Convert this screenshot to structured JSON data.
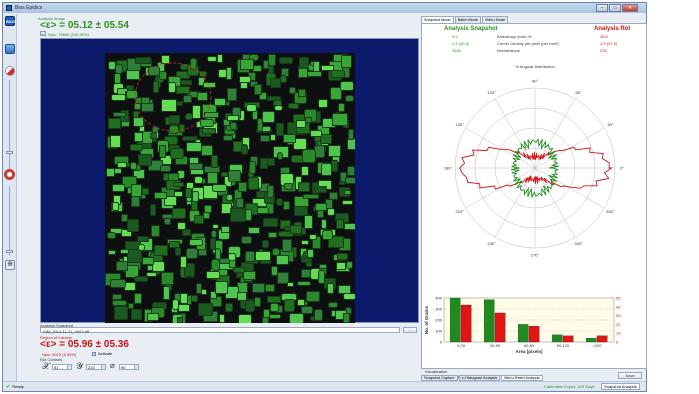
{
  "window": {
    "title": "Bios Epidicx",
    "btn_min": "–",
    "btn_max": "□",
    "btn_close": "✕"
  },
  "colors": {
    "green": "#2e8f1f",
    "red": "#cc1111",
    "bg_blue": "#0b1a6b"
  },
  "main": {
    "analysis_image_label": "Analysis Image",
    "mean_text": "<ε> =  05.12  ±  05.54",
    "npix_text": "Npix: 76800 (100.00%)",
    "snapshot_label": "Analysis Snapshot",
    "snapshot_file": "SIM_2014-11-21_0003.tiff",
    "roi_label": "Region of Interest",
    "roi_mean_text": "<ε> =  05.96  ±  05.36",
    "roi_npix_text": "Npix:  5023 (6.54%)",
    "activate_label": "Activate",
    "roi_controls_label": "RoI Controls",
    "roi_x": "51",
    "roi_y": "223",
    "roi_angle": "90"
  },
  "right": {
    "tabs": [
      "Snapshot Mode",
      "Batch Mode",
      "Video Mode"
    ],
    "snapshot_title": "Analysis Snapshot",
    "roi_title": "Analysis RoI",
    "rows": [
      {
        "left": "9.9",
        "label": "Anisotropy Index %",
        "right": "38.8"
      },
      {
        "left": "2.4 (40.5)",
        "label": "Corner Density per pixel (per mm²)",
        "right": "1.9 (37.6)"
      },
      {
        "left": "1550",
        "label": "Intersections",
        "right": "215"
      }
    ],
    "polar_title": "% Angular Distribution",
    "angle_labels": [
      "90°",
      "60°",
      "30°",
      "0°",
      "330°",
      "300°",
      "270°",
      "240°",
      "210°",
      "180°",
      "150°",
      "120°"
    ],
    "visualisation_label": "Visualisation",
    "vis_options": [
      "Cell Areas",
      "Pointillicity",
      "Thinned"
    ],
    "save_label": "Save",
    "bottom_tabs": [
      "Snapshot Capture",
      "e-Histogram Analysis",
      "Micro-Relief Analysis"
    ]
  },
  "chart_data": {
    "type": "bar",
    "categories": [
      "0-29",
      "30-59",
      "60-89",
      "90-120",
      ">120"
    ],
    "series": [
      {
        "values": [
          410,
          385,
          160,
          65,
          35
        ]
      },
      {
        "values": [
          42,
          33,
          18,
          7,
          7
        ]
      }
    ],
    "xlabel": "Area [pixels]",
    "ylabel": "No. of Grains",
    "ylim": [
      0,
      400
    ],
    "y2lim": [
      0,
      50
    ],
    "y_ticks": [
      "0",
      "100",
      "200",
      "300",
      "400"
    ],
    "y2_ticks": [
      "0",
      "10",
      "20",
      "30",
      "40",
      "50"
    ]
  },
  "status": {
    "ready": "Ready",
    "calibration": "Calibration Expiry: 219 Days",
    "mode": "Snapshot Analysis"
  }
}
